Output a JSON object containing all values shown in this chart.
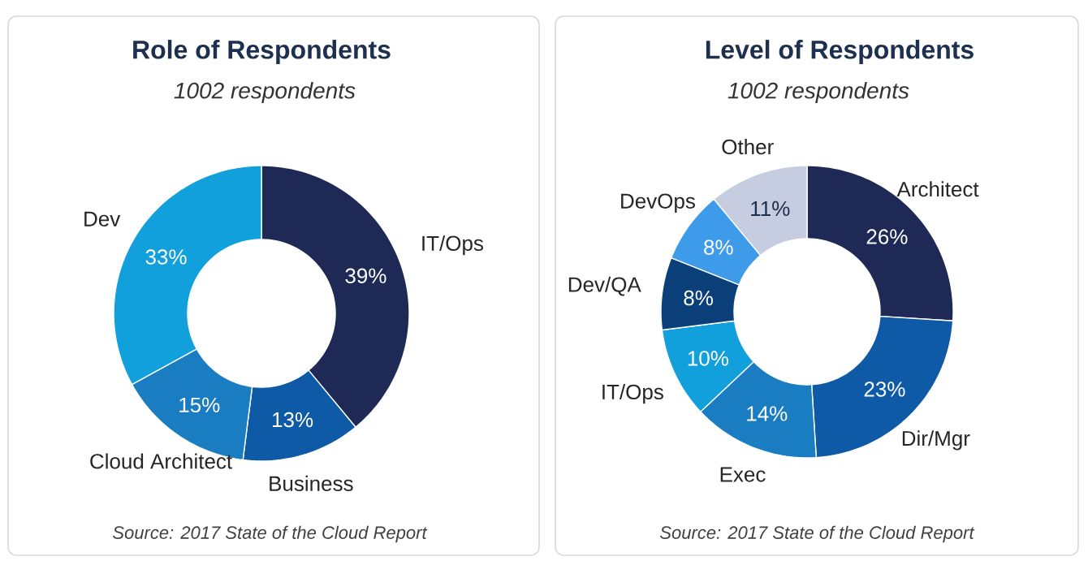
{
  "chart_data": [
    {
      "type": "donut",
      "title": "Role of Respondents",
      "subtitle": "1002 respondents",
      "categories": [
        "IT/Ops",
        "Business",
        "Cloud Architect",
        "Dev"
      ],
      "values": [
        39,
        13,
        15,
        33
      ],
      "value_labels": [
        "39%",
        "13%",
        "15%",
        "33%"
      ],
      "colors": [
        "#1e2a55",
        "#0e5aa7",
        "#1a7cc1",
        "#12a0dd"
      ],
      "annotations": [
        "Source: 2017 State of the Cloud Report"
      ]
    },
    {
      "type": "donut",
      "title": "Level of Respondents",
      "subtitle": "1002 respondents",
      "categories": [
        "Architect",
        "Dir/Mgr",
        "Exec",
        "IT/Ops",
        "Dev/QA",
        "DevOps",
        "Other"
      ],
      "values": [
        26,
        23,
        14,
        10,
        8,
        8,
        11
      ],
      "value_labels": [
        "26%",
        "23%",
        "14%",
        "10%",
        "8%",
        "8%",
        "11%"
      ],
      "colors": [
        "#1e2a55",
        "#0e5aa7",
        "#1a7cc1",
        "#12a0dd",
        "#0b3f7a",
        "#3d9be9",
        "#c6cde0"
      ],
      "annotations": [
        "Source: 2017 State of the Cloud Report"
      ]
    }
  ]
}
